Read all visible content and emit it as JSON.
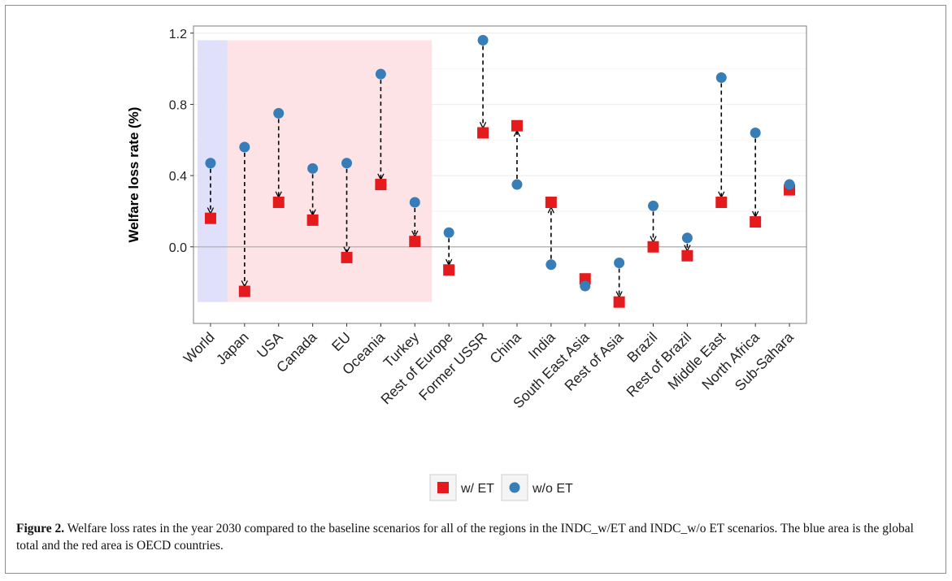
{
  "chart_data": {
    "type": "scatter",
    "ylabel": "Welfare loss rate (%)",
    "xlabel": "",
    "ylim": [
      -0.43,
      1.24
    ],
    "yticks": [
      0.0,
      0.4,
      0.8,
      1.2
    ],
    "ytick_labels": [
      "0.0",
      "0.4",
      "0.8",
      "1.2"
    ],
    "grid": true,
    "legend_position": "bottom",
    "categories": [
      "World",
      "Japan",
      "USA",
      "Canada",
      "EU",
      "Oceania",
      "Turkey",
      "Rest of Europe",
      "Former USSR",
      "China",
      "India",
      "South East Asia",
      "Rest of Asia",
      "Brazil",
      "Rest of Brazil",
      "Middle East",
      "North Africa",
      "Sub-Sahara"
    ],
    "series": [
      {
        "name": "w/ ET",
        "marker": "square",
        "color": "#e41a1c",
        "values": [
          0.16,
          -0.25,
          0.25,
          0.15,
          -0.06,
          0.35,
          0.03,
          -0.13,
          0.64,
          0.68,
          0.25,
          -0.18,
          -0.31,
          0.0,
          -0.05,
          0.25,
          0.14,
          0.32
        ]
      },
      {
        "name": "w/o ET",
        "marker": "circle",
        "color": "#377eb8",
        "values": [
          0.47,
          0.56,
          0.75,
          0.44,
          0.47,
          0.97,
          0.25,
          0.08,
          1.16,
          0.35,
          -0.1,
          -0.22,
          -0.09,
          0.23,
          0.05,
          0.95,
          0.64,
          0.35
        ]
      }
    ],
    "shaded_regions": [
      {
        "label": "global total",
        "color": "#e0e0fb",
        "from_category": "World",
        "to_category": "World",
        "y_from": -0.31,
        "y_to": 1.16
      },
      {
        "label": "OECD countries",
        "color": "#fde3e6",
        "from_category": "Japan",
        "to_category": "Turkey",
        "y_from": -0.31,
        "y_to": 1.16
      }
    ],
    "annotations": "dashed arrows point from w/o ET value to w/ ET value for each region"
  },
  "caption": {
    "label": "Figure 2.",
    "text": " Welfare loss rates in the year 2030 compared to the baseline scenarios for all of the regions in the INDC_w/ET and INDC_w/o ET scenarios. The blue area is the global total and the red area is OECD countries."
  }
}
